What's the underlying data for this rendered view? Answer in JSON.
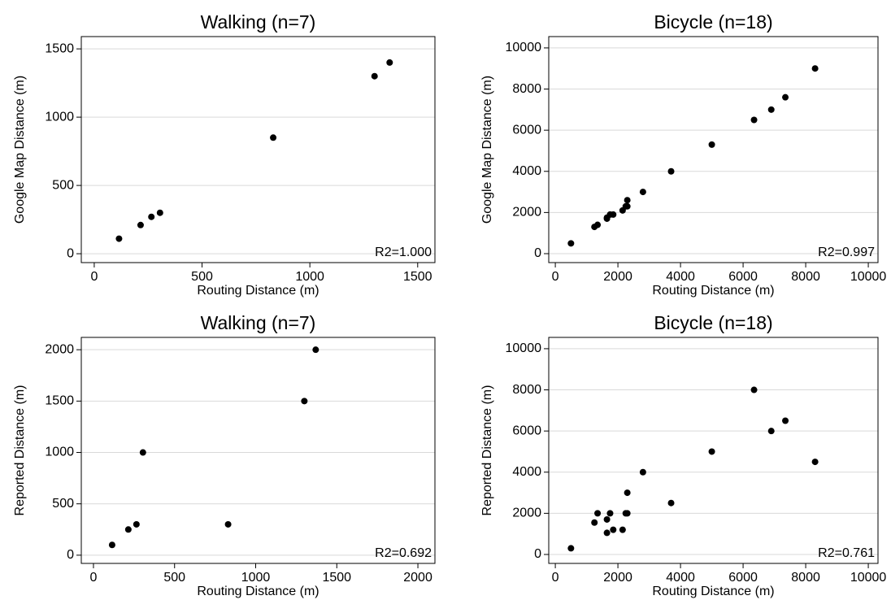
{
  "chart_data": [
    {
      "type": "scatter",
      "title": "Walking (n=7)",
      "x_label": "Routing Distance (m)",
      "y_label": "Google Map Distance (m)",
      "annotation": "R2=1.000",
      "color": "#000000",
      "grid": true,
      "x": [
        115,
        215,
        265,
        305,
        830,
        1300,
        1370
      ],
      "y": [
        110,
        210,
        270,
        300,
        850,
        1300,
        1400
      ],
      "xlim": [
        -60,
        1580
      ],
      "ylim": [
        -65,
        1590
      ],
      "xticks": [
        0,
        500,
        1000,
        1500
      ],
      "yticks": [
        0,
        500,
        1000,
        1500
      ]
    },
    {
      "type": "scatter",
      "title": "Bicycle (n=18)",
      "x_label": "Routing Distance (m)",
      "y_label": "Google Map Distance (m)",
      "annotation": "R2=0.997",
      "color": "#000000",
      "grid": true,
      "x": [
        500,
        1250,
        1350,
        1650,
        1650,
        1750,
        1850,
        2150,
        2250,
        2300,
        2300,
        2800,
        3700,
        5000,
        6350,
        6900,
        7350,
        8300
      ],
      "y": [
        500,
        1300,
        1400,
        1700,
        1750,
        1900,
        1900,
        2100,
        2300,
        2300,
        2600,
        3000,
        4000,
        5300,
        6500,
        7000,
        7600,
        9000
      ],
      "xlim": [
        -210,
        10310
      ],
      "ylim": [
        -435,
        10550
      ],
      "xticks": [
        0,
        2000,
        4000,
        6000,
        8000,
        10000
      ],
      "yticks": [
        0,
        2000,
        4000,
        6000,
        8000,
        10000
      ]
    },
    {
      "type": "scatter",
      "title": "Walking (n=7)",
      "x_label": "Routing Distance (m)",
      "y_label": "Reported Distance (m)",
      "annotation": "R2=0.692",
      "color": "#000000",
      "grid": true,
      "x": [
        115,
        215,
        265,
        305,
        830,
        1300,
        1370
      ],
      "y": [
        100,
        250,
        300,
        1000,
        300,
        1500,
        2000
      ],
      "xlim": [
        -75,
        2105
      ],
      "ylim": [
        -80,
        2120
      ],
      "xticks": [
        0,
        500,
        1000,
        1500,
        2000
      ],
      "yticks": [
        0,
        500,
        1000,
        1500,
        2000
      ]
    },
    {
      "type": "scatter",
      "title": "Bicycle (n=18)",
      "x_label": "Routing Distance (m)",
      "y_label": "Reported Distance (m)",
      "annotation": "R2=0.761",
      "color": "#000000",
      "grid": true,
      "x": [
        500,
        1250,
        1350,
        1650,
        1650,
        1750,
        1850,
        2150,
        2250,
        2300,
        2300,
        2800,
        3700,
        5000,
        6350,
        6900,
        7350,
        8300
      ],
      "y": [
        300,
        1550,
        2000,
        1700,
        1050,
        2000,
        1200,
        1200,
        2000,
        2000,
        3000,
        4000,
        2500,
        5000,
        8000,
        6000,
        6500,
        4500
      ],
      "xlim": [
        -210,
        10310
      ],
      "ylim": [
        -435,
        10550
      ],
      "xticks": [
        0,
        2000,
        4000,
        6000,
        8000,
        10000
      ],
      "yticks": [
        0,
        2000,
        4000,
        6000,
        8000,
        10000
      ]
    }
  ]
}
